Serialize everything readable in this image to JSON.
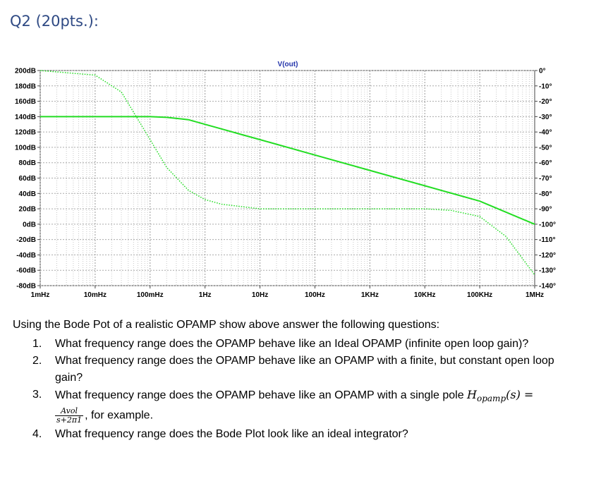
{
  "question_title": "Q2 (20pts.):",
  "chart_data": {
    "type": "line",
    "title": "V(out)",
    "x_scale": "log",
    "x_ticks": [
      "1mHz",
      "10mHz",
      "100mHz",
      "1Hz",
      "10Hz",
      "100Hz",
      "1KHz",
      "10KHz",
      "100KHz",
      "1MHz"
    ],
    "xlim_hz": [
      0.001,
      1000000
    ],
    "y_left_ticks": [
      "200dB",
      "180dB",
      "160dB",
      "140dB",
      "120dB",
      "100dB",
      "80dB",
      "60dB",
      "40dB",
      "20dB",
      "0dB",
      "-20dB",
      "-40dB",
      "-60dB",
      "-80dB"
    ],
    "ylim_db": [
      -80,
      200
    ],
    "y_right_ticks": [
      "0°",
      "-10°",
      "-20°",
      "-30°",
      "-40°",
      "-50°",
      "-60°",
      "-70°",
      "-80°",
      "-90°",
      "-100°",
      "-110°",
      "-120°",
      "-130°",
      "-140°"
    ],
    "ylim_deg": [
      -140,
      0
    ],
    "grid": true,
    "series": [
      {
        "style": "solid",
        "color": "#22dd22",
        "x": [
          0.001,
          0.01,
          0.1,
          0.2,
          0.5,
          1,
          2,
          5,
          10,
          100,
          1000,
          10000,
          100000,
          1000000
        ],
        "y": [
          140,
          140,
          140,
          139,
          136,
          130,
          124,
          116,
          110,
          90,
          70,
          50,
          30,
          0
        ]
      },
      {
        "style": "dotted",
        "color": "#22dd22",
        "x": [
          0.001,
          0.01,
          0.03,
          0.1,
          0.2,
          0.5,
          1,
          2,
          10,
          100,
          1000,
          10000,
          30000,
          100000,
          300000,
          1000000
        ],
        "y": [
          0,
          -3,
          -14,
          -45,
          -63,
          -78,
          -84,
          -87,
          -90,
          -90,
          -90,
          -90,
          -91,
          -95,
          -108,
          -133
        ]
      }
    ]
  },
  "intro": "Using the Bode Pot of a realistic OPAMP show above answer the following questions:",
  "questions": [
    {
      "num": "1.",
      "text": "What frequency range does the OPAMP behave like an Ideal OPAMP (infinite open loop gain)?"
    },
    {
      "num": "2.",
      "text": "What frequency range does the OPAMP behave like an OPAMP with a finite, but constant open loop gain?"
    },
    {
      "num": "3.",
      "text": "What frequency range does the OPAMP behave like an OPAMP with a single pole",
      "math_lhs": "H",
      "math_sub": "opamp",
      "math_arg": "(s) =",
      "frac_num": "Avol",
      "frac_den": "s+2π1",
      "tail": ", for example."
    },
    {
      "num": "4.",
      "text": "What frequency range does the Bode Plot look like an ideal integrator?"
    }
  ]
}
